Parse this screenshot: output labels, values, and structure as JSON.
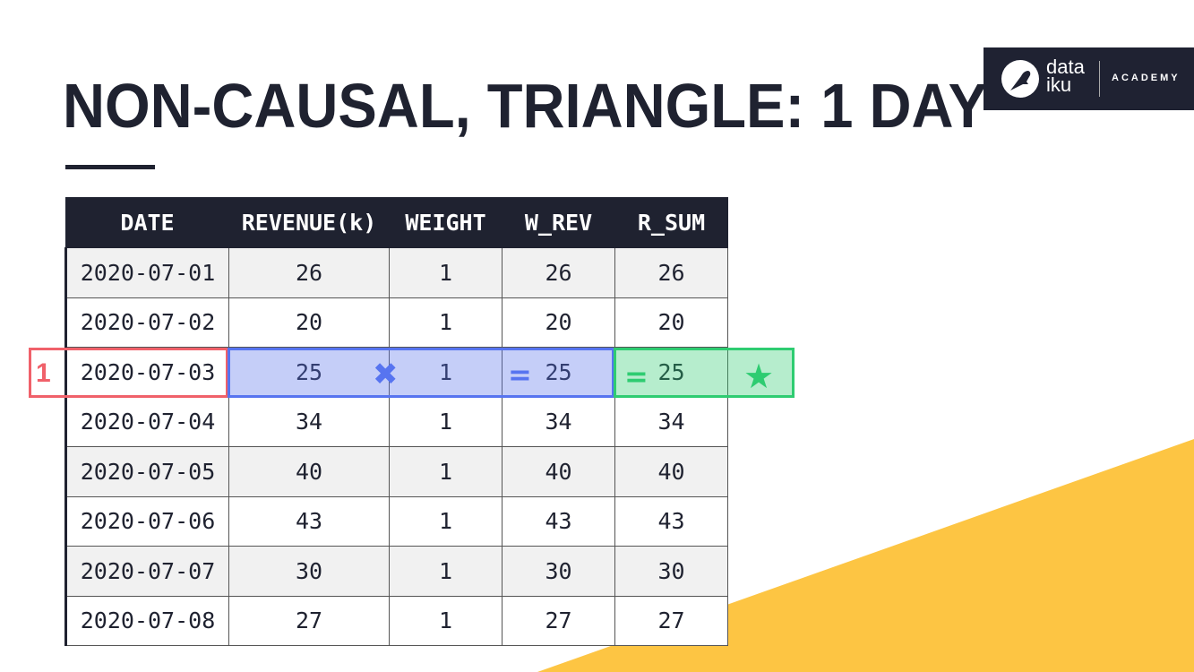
{
  "slide": {
    "title": "NON-CAUSAL, TRIANGLE: 1 DAY",
    "logo": {
      "line1": "data",
      "line2": "iku",
      "suffix": "ACADEMY"
    },
    "colors": {
      "dark": "#1f2230",
      "yellow": "#fdc543",
      "highlight_red": "#f0616a",
      "highlight_blue": "#5774f0",
      "highlight_green": "#2ecc71"
    }
  },
  "table": {
    "headers": [
      "DATE",
      "REVENUE(k)",
      "WEIGHT",
      "W_REV",
      "R_SUM"
    ],
    "rows": [
      [
        "2020-07-01",
        "26",
        "1",
        "26",
        "26"
      ],
      [
        "2020-07-02",
        "20",
        "1",
        "20",
        "20"
      ],
      [
        "2020-07-03",
        "25",
        "1",
        "25",
        "25"
      ],
      [
        "2020-07-04",
        "34",
        "1",
        "34",
        "34"
      ],
      [
        "2020-07-05",
        "40",
        "1",
        "40",
        "40"
      ],
      [
        "2020-07-06",
        "43",
        "1",
        "43",
        "43"
      ],
      [
        "2020-07-07",
        "30",
        "1",
        "30",
        "30"
      ],
      [
        "2020-07-08",
        "27",
        "1",
        "27",
        "27"
      ]
    ]
  },
  "annotation": {
    "window_label": "1",
    "highlighted_row": "2020-07-03",
    "icons": [
      "multiply-icon",
      "equals-icon",
      "equals-icon",
      "star-icon"
    ]
  }
}
